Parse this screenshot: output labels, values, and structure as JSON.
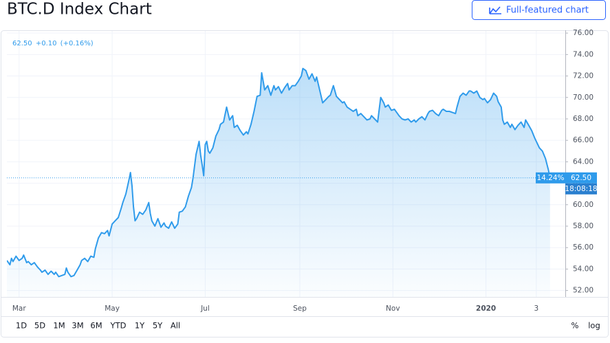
{
  "header": {
    "title": "BTC.D Index Chart",
    "button": "Full-featured chart"
  },
  "chart_data": {
    "type": "line",
    "quote": "62.50",
    "change": "+0.10",
    "change_pct": "(+0.16%)",
    "price_tag": "62.50",
    "price_tag_pct": "14.24%",
    "countdown": "18:08:18",
    "color": "#2f9beb",
    "x": [
      -8,
      -6,
      -5,
      -4,
      -2,
      0,
      2,
      3,
      5,
      6,
      8,
      10,
      12,
      14,
      15,
      17,
      19,
      21,
      23,
      24,
      26,
      28,
      30,
      31,
      32,
      34,
      36,
      38,
      40,
      41,
      43,
      45,
      47,
      49,
      50,
      52,
      54,
      56,
      58,
      59,
      61,
      63,
      65,
      67,
      68,
      70,
      72,
      73,
      74,
      75,
      76,
      77,
      79,
      81,
      83,
      85,
      86,
      87,
      89,
      91,
      93,
      95,
      96,
      98,
      100,
      102,
      104,
      105,
      107,
      109,
      111,
      113,
      114,
      116,
      118,
      119,
      120,
      121,
      122,
      123,
      124,
      125,
      127,
      129,
      131,
      132,
      134,
      136,
      138,
      140,
      141,
      143,
      145,
      147,
      149,
      150,
      152,
      154,
      156,
      158,
      159,
      161,
      163,
      165,
      167,
      168,
      170,
      172,
      174,
      176,
      177,
      179,
      181,
      183,
      185,
      186,
      188,
      190,
      192,
      194,
      195,
      197,
      199,
      201,
      203,
      204,
      206,
      208,
      210,
      212,
      213,
      215,
      217,
      219,
      221,
      222,
      224,
      226,
      228,
      230,
      231,
      233,
      235,
      237,
      239,
      240,
      242,
      244,
      246,
      248,
      249,
      251,
      253,
      255,
      257,
      259,
      260,
      262,
      264,
      266,
      268,
      269,
      271,
      273,
      275,
      277,
      278,
      280,
      282,
      284,
      286,
      287,
      289,
      291,
      293,
      295,
      296,
      298,
      300,
      302,
      304,
      305,
      307,
      309,
      311,
      313,
      314,
      316,
      317,
      318,
      320,
      322,
      323,
      325,
      327,
      329,
      331,
      332,
      334,
      336,
      338,
      340,
      341,
      343,
      345,
      347,
      348
    ],
    "values": [
      54.8,
      54.4,
      55.0,
      54.7,
      55.2,
      54.8,
      55.0,
      55.3,
      54.6,
      54.7,
      54.4,
      54.6,
      54.2,
      53.9,
      53.7,
      53.9,
      53.5,
      53.8,
      53.5,
      53.7,
      53.3,
      53.4,
      53.5,
      54.1,
      53.7,
      53.3,
      53.4,
      53.9,
      54.4,
      54.8,
      55.0,
      54.7,
      55.2,
      55.1,
      55.9,
      56.9,
      57.4,
      57.3,
      57.6,
      57.1,
      58.2,
      58.5,
      58.8,
      59.7,
      60.2,
      61.0,
      62.3,
      63.0,
      61.8,
      59.8,
      58.5,
      58.7,
      59.3,
      59.1,
      59.5,
      60.2,
      59.2,
      58.5,
      58.0,
      58.7,
      57.9,
      58.3,
      58.0,
      57.8,
      58.4,
      57.8,
      58.2,
      59.3,
      59.4,
      59.8,
      60.8,
      61.6,
      62.5,
      64.7,
      65.9,
      64.6,
      63.7,
      62.7,
      65.6,
      65.9,
      65.0,
      64.8,
      65.3,
      66.4,
      67.0,
      67.5,
      67.7,
      69.1,
      67.9,
      68.3,
      67.2,
      67.4,
      66.9,
      66.5,
      66.8,
      66.6,
      67.5,
      68.7,
      70.1,
      70.2,
      72.3,
      70.7,
      71.1,
      70.2,
      71.1,
      70.7,
      71.0,
      70.4,
      70.9,
      71.3,
      70.7,
      71.1,
      71.1,
      71.5,
      72.0,
      72.7,
      72.5,
      71.7,
      72.2,
      71.5,
      71.9,
      70.7,
      69.5,
      69.8,
      70.1,
      70.2,
      71.1,
      70.1,
      69.8,
      69.5,
      69.6,
      69.1,
      68.9,
      68.7,
      68.9,
      68.3,
      68.5,
      68.2,
      67.9,
      68.0,
      68.3,
      68.0,
      67.7,
      70.0,
      69.5,
      69.1,
      69.3,
      68.8,
      68.9,
      68.5,
      68.3,
      68.0,
      67.9,
      68.0,
      67.7,
      67.9,
      67.7,
      68.0,
      68.2,
      67.9,
      68.5,
      68.7,
      68.8,
      68.5,
      68.3,
      68.8,
      68.9,
      68.7,
      68.7,
      68.6,
      68.5,
      69.1,
      70.1,
      70.4,
      70.2,
      70.6,
      70.6,
      70.4,
      70.6,
      70.0,
      69.8,
      69.9,
      69.5,
      69.8,
      70.4,
      70.1,
      69.6,
      69.1,
      67.9,
      67.5,
      67.7,
      67.2,
      67.5,
      67.0,
      67.4,
      67.7,
      67.2,
      67.9,
      67.4,
      66.9,
      66.2,
      65.6,
      65.3,
      65.0,
      64.3,
      63.2,
      62.5
    ],
    "xlim": [
      -8,
      358
    ],
    "xticks": [
      {
        "value": 0,
        "label": "Mar"
      },
      {
        "value": 61,
        "label": "May"
      },
      {
        "value": 122,
        "label": "Jul"
      },
      {
        "value": 184,
        "label": "Sep"
      },
      {
        "value": 245,
        "label": "Nov"
      },
      {
        "value": 306,
        "label": "2020"
      },
      {
        "value": 339,
        "label": "3"
      }
    ],
    "ylim": [
      51.4,
      76.2
    ],
    "yticks": [
      {
        "value": 52,
        "label": "52.00"
      },
      {
        "value": 54,
        "label": "54.00"
      },
      {
        "value": 56,
        "label": "56.00"
      },
      {
        "value": 58,
        "label": "58.00"
      },
      {
        "value": 60,
        "label": "60.00"
      },
      {
        "value": 62,
        "label": "62.00"
      },
      {
        "value": 64,
        "label": "64.00"
      },
      {
        "value": 66,
        "label": "66.00"
      },
      {
        "value": 68,
        "label": "68.00"
      },
      {
        "value": 70,
        "label": "70.00"
      },
      {
        "value": 72,
        "label": "72.00"
      },
      {
        "value": 74,
        "label": "74.00"
      },
      {
        "value": 76,
        "label": "76.00"
      }
    ],
    "grid": true,
    "range_buttons": [
      "1D",
      "5D",
      "1M",
      "3M",
      "6M",
      "YTD",
      "1Y",
      "5Y",
      "All"
    ],
    "scale_buttons": [
      "%",
      "log"
    ]
  }
}
